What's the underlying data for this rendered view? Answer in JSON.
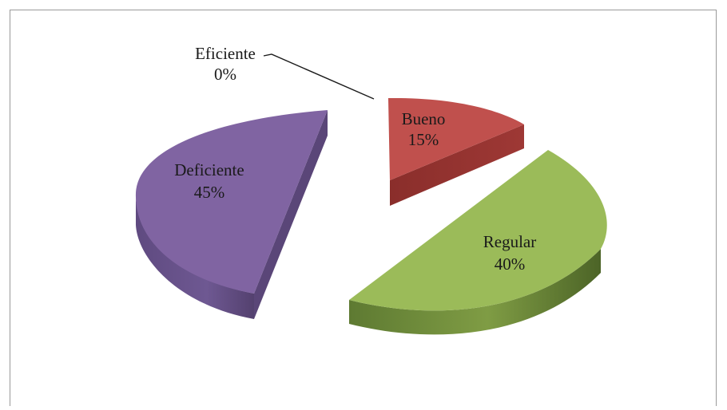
{
  "chart_data": {
    "type": "pie",
    "style": "3d-exploded",
    "slices": [
      {
        "name": "Eficiente",
        "value": 0,
        "label": "0%",
        "color": "#4f81bd"
      },
      {
        "name": "Bueno",
        "value": 15,
        "label": "15%",
        "color": "#c0504d"
      },
      {
        "name": "Regular",
        "value": 40,
        "label": "40%",
        "color": "#9bbb59"
      },
      {
        "name": "Deficiente",
        "value": 45,
        "label": "45%",
        "color": "#8064a2"
      }
    ]
  }
}
